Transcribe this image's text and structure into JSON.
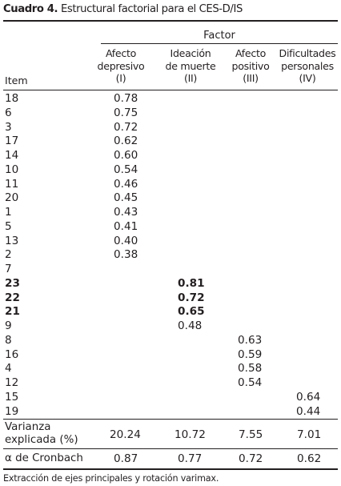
{
  "caption": {
    "label": "Cuadro 4.",
    "title": "Estructural factorial para el CES-D/IS"
  },
  "header": {
    "factor": "Factor",
    "item": "Item",
    "columns": [
      {
        "line1": "Afecto",
        "line2": "depresivo",
        "line3": "(I)"
      },
      {
        "line1": "Ideación",
        "line2": "de muerte",
        "line3": "(II)"
      },
      {
        "line1": "Afecto",
        "line2": "positivo",
        "line3": "(III)"
      },
      {
        "line1": "Dificultades",
        "line2": "personales",
        "line3": "(IV)"
      }
    ]
  },
  "rows": [
    {
      "item": "18",
      "f1": "0.78",
      "f2": "",
      "f3": "",
      "f4": "",
      "bold": false
    },
    {
      "item": "6",
      "f1": "0.75",
      "f2": "",
      "f3": "",
      "f4": "",
      "bold": false
    },
    {
      "item": "3",
      "f1": "0.72",
      "f2": "",
      "f3": "",
      "f4": "",
      "bold": false
    },
    {
      "item": "17",
      "f1": "0.62",
      "f2": "",
      "f3": "",
      "f4": "",
      "bold": false
    },
    {
      "item": "14",
      "f1": "0.60",
      "f2": "",
      "f3": "",
      "f4": "",
      "bold": false
    },
    {
      "item": "10",
      "f1": "0.54",
      "f2": "",
      "f3": "",
      "f4": "",
      "bold": false
    },
    {
      "item": "11",
      "f1": "0.46",
      "f2": "",
      "f3": "",
      "f4": "",
      "bold": false
    },
    {
      "item": "20",
      "f1": "0.45",
      "f2": "",
      "f3": "",
      "f4": "",
      "bold": false
    },
    {
      "item": "1",
      "f1": "0.43",
      "f2": "",
      "f3": "",
      "f4": "",
      "bold": false
    },
    {
      "item": "5",
      "f1": "0.41",
      "f2": "",
      "f3": "",
      "f4": "",
      "bold": false
    },
    {
      "item": "13",
      "f1": "0.40",
      "f2": "",
      "f3": "",
      "f4": "",
      "bold": false
    },
    {
      "item": "2",
      "f1": "0.38",
      "f2": "",
      "f3": "",
      "f4": "",
      "bold": false
    },
    {
      "item": "7",
      "f1": "",
      "f2": "",
      "f3": "",
      "f4": "",
      "bold": false
    },
    {
      "item": "23",
      "f1": "",
      "f2": "0.81",
      "f3": "",
      "f4": "",
      "bold": true
    },
    {
      "item": "22",
      "f1": "",
      "f2": "0.72",
      "f3": "",
      "f4": "",
      "bold": true
    },
    {
      "item": "21",
      "f1": "",
      "f2": "0.65",
      "f3": "",
      "f4": "",
      "bold": true
    },
    {
      "item": "9",
      "f1": "",
      "f2": "0.48",
      "f3": "",
      "f4": "",
      "bold": false
    },
    {
      "item": "8",
      "f1": "",
      "f2": "",
      "f3": "0.63",
      "f4": "",
      "bold": false
    },
    {
      "item": "16",
      "f1": "",
      "f2": "",
      "f3": "0.59",
      "f4": "",
      "bold": false
    },
    {
      "item": "4",
      "f1": "",
      "f2": "",
      "f3": "0.58",
      "f4": "",
      "bold": false
    },
    {
      "item": "12",
      "f1": "",
      "f2": "",
      "f3": "0.54",
      "f4": "",
      "bold": false
    },
    {
      "item": "15",
      "f1": "",
      "f2": "",
      "f3": "",
      "f4": "0.64",
      "bold": false
    },
    {
      "item": "19",
      "f1": "",
      "f2": "",
      "f3": "",
      "f4": "0.44",
      "bold": false
    }
  ],
  "variance": {
    "label_line1": "Varianza",
    "label_line2": "explicada (%)",
    "values": [
      "20.24",
      "10.72",
      "7.55",
      "7.01"
    ]
  },
  "cronbach": {
    "label": "α de Cronbach",
    "values": [
      "0.87",
      "0.77",
      "0.72",
      "0.62"
    ]
  },
  "footnote": "Extracción de ejes principales y rotación varimax."
}
